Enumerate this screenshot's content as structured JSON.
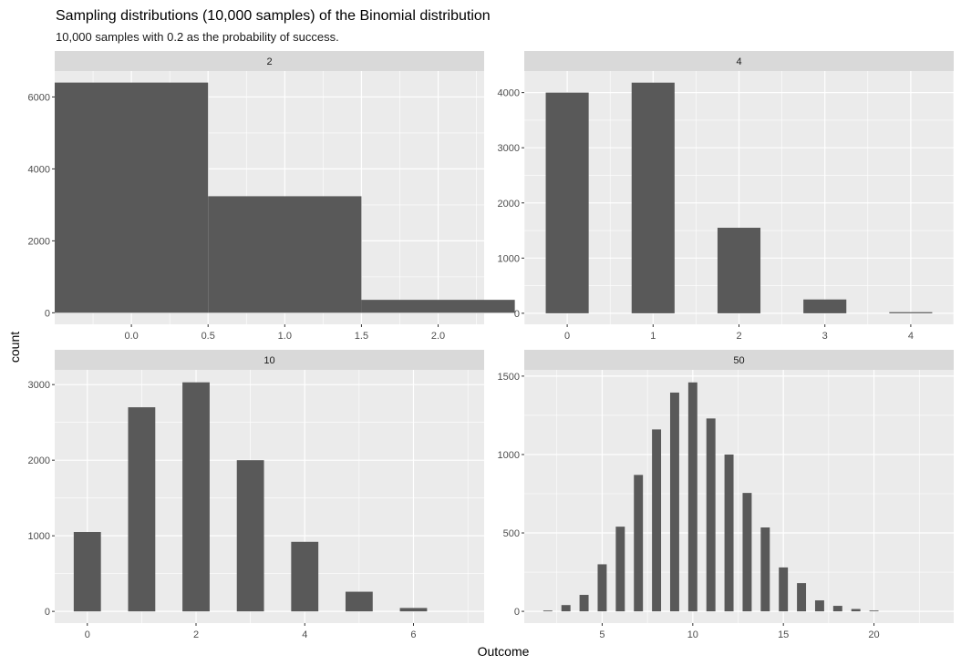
{
  "title": "Sampling distributions (10,000 samples) of the Binomial distribution",
  "subtitle": "10,000 samples with 0.2 as the probability of success.",
  "colors": {
    "panel_bg": "#EBEBEB",
    "grid": "#FFFFFF",
    "strip_bg": "#D9D9D9",
    "bar": "#595959"
  },
  "chart_data": {
    "type": "bar",
    "xlabel": "Outcome",
    "ylabel": "count",
    "grid": true,
    "facet_layout": "2x2, free scales",
    "panels": [
      {
        "strip": "2",
        "bar_width": 1,
        "xlim": [
          -0.5,
          2.3
        ],
        "ylim": [
          -320,
          6720
        ],
        "x_ticks": [
          0.0,
          0.5,
          1.0,
          1.5,
          2.0
        ],
        "x_tick_labels": [
          "0.0",
          "0.5",
          "1.0",
          "1.5",
          "2.0"
        ],
        "y_ticks": [
          0,
          2000,
          4000,
          6000
        ],
        "y_tick_labels": [
          "0",
          "2000",
          "4000",
          "6000"
        ],
        "x": [
          0,
          1,
          2
        ],
        "values": [
          6400,
          3240,
          360
        ]
      },
      {
        "strip": "4",
        "bar_width": 0.5,
        "xlim": [
          -0.5,
          4.5
        ],
        "ylim": [
          -200,
          4390
        ],
        "x_ticks": [
          0,
          1,
          2,
          3,
          4
        ],
        "x_tick_labels": [
          "0",
          "1",
          "2",
          "3",
          "4"
        ],
        "y_ticks": [
          0,
          1000,
          2000,
          3000,
          4000
        ],
        "y_tick_labels": [
          "0",
          "1000",
          "2000",
          "3000",
          "4000"
        ],
        "x": [
          0,
          1,
          2,
          3,
          4
        ],
        "values": [
          4000,
          4180,
          1550,
          250,
          20
        ]
      },
      {
        "strip": "10",
        "bar_width": 0.5,
        "xlim": [
          -0.6,
          7.3
        ],
        "ylim": [
          -155,
          3195
        ],
        "x_ticks": [
          0,
          2,
          4,
          6
        ],
        "x_tick_labels": [
          "0",
          "2",
          "4",
          "6"
        ],
        "y_ticks": [
          0,
          1000,
          2000,
          3000
        ],
        "y_tick_labels": [
          "0",
          "1000",
          "2000",
          "3000"
        ],
        "x": [
          0,
          1,
          2,
          3,
          4,
          5,
          6
        ],
        "values": [
          1050,
          2700,
          3030,
          2000,
          920,
          260,
          45
        ]
      },
      {
        "strip": "50",
        "bar_width": 0.5,
        "xlim": [
          0.7,
          24.4
        ],
        "ylim": [
          -75,
          1540
        ],
        "x_ticks": [
          5,
          10,
          15,
          20
        ],
        "x_tick_labels": [
          "5",
          "10",
          "15",
          "20"
        ],
        "y_ticks": [
          0,
          500,
          1000,
          1500
        ],
        "y_tick_labels": [
          "0",
          "500",
          "1000",
          "1500"
        ],
        "x": [
          2,
          3,
          4,
          5,
          6,
          7,
          8,
          9,
          10,
          11,
          12,
          13,
          14,
          15,
          16,
          17,
          18,
          19,
          20
        ],
        "values": [
          5,
          40,
          105,
          300,
          540,
          870,
          1160,
          1395,
          1460,
          1230,
          1000,
          755,
          535,
          280,
          180,
          70,
          35,
          15,
          5
        ]
      }
    ]
  }
}
